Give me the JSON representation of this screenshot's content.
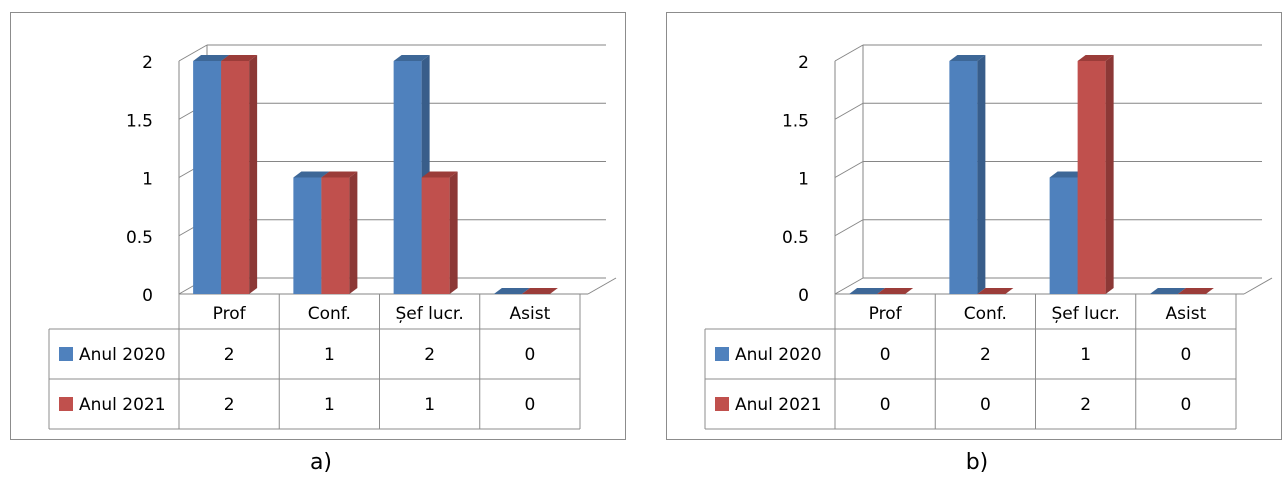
{
  "colors": {
    "series1_front": "#4f81bd",
    "series1_side": "#385d8a",
    "series1_top": "#3d6797",
    "series2_front": "#c0504d",
    "series2_side": "#8c3836",
    "series2_top": "#9b3c39",
    "gridline": "#868686",
    "table_border": "#8c8c8c",
    "text": "#000000"
  },
  "captions": {
    "a": "a)",
    "b": "b)"
  },
  "chart_data": [
    {
      "type": "bar",
      "panel": "a)",
      "title": "",
      "categories": [
        "Prof",
        "Conf.",
        "Șef lucr.",
        "Asist"
      ],
      "series": [
        {
          "name": "Anul 2020",
          "values": [
            2,
            1,
            2,
            0
          ]
        },
        {
          "name": "Anul 2021",
          "values": [
            2,
            1,
            1,
            0
          ]
        }
      ],
      "y_ticks": [
        "0",
        "0.5",
        "1",
        "1.5",
        "2"
      ],
      "ylim": [
        0,
        2
      ],
      "grid": true,
      "legend": "data-table-below",
      "table": {
        "rows": [
          {
            "label": "Anul 2020",
            "cells": [
              "2",
              "1",
              "2",
              "0"
            ]
          },
          {
            "label": "Anul 2021",
            "cells": [
              "2",
              "1",
              "1",
              "0"
            ]
          }
        ]
      }
    },
    {
      "type": "bar",
      "panel": "b)",
      "title": "",
      "categories": [
        "Prof",
        "Conf.",
        "Șef lucr.",
        "Asist"
      ],
      "series": [
        {
          "name": "Anul 2020",
          "values": [
            0,
            2,
            1,
            0
          ]
        },
        {
          "name": "Anul 2021",
          "values": [
            0,
            0,
            2,
            0
          ]
        }
      ],
      "y_ticks": [
        "0",
        "0.5",
        "1",
        "1.5",
        "2"
      ],
      "ylim": [
        0,
        2
      ],
      "grid": true,
      "legend": "data-table-below",
      "table": {
        "rows": [
          {
            "label": "Anul 2020",
            "cells": [
              "0",
              "2",
              "1",
              "0"
            ]
          },
          {
            "label": "Anul 2021",
            "cells": [
              "0",
              "0",
              "2",
              "0"
            ]
          }
        ]
      }
    }
  ]
}
